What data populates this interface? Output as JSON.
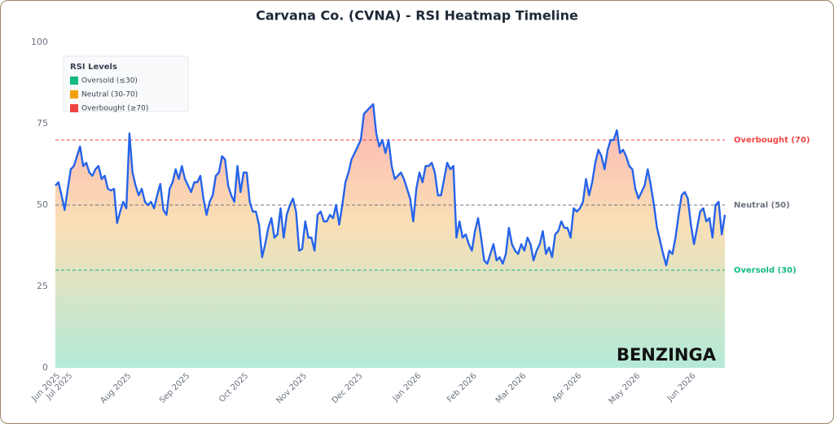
{
  "chart_data": {
    "type": "line",
    "title": "Carvana Co. (CVNA) - RSI Heatmap Timeline",
    "watermark": "BENZINGA",
    "color": "#2563eb",
    "values": [
      56,
      57,
      53,
      48.5,
      55,
      61,
      62,
      65,
      68,
      62,
      63,
      60,
      59,
      61,
      62,
      58,
      59,
      55,
      54.5,
      55,
      44.5,
      48,
      51,
      49,
      72,
      60,
      56,
      53,
      55,
      51,
      50,
      51,
      49,
      53,
      56.5,
      48.5,
      47,
      55,
      57,
      61,
      58,
      62,
      58,
      56,
      54,
      57,
      57,
      59,
      52,
      47,
      51,
      53,
      59,
      60,
      65,
      64,
      56,
      53,
      51,
      62,
      54,
      60,
      60,
      51,
      48,
      48,
      44,
      34,
      38,
      43,
      46,
      40,
      41,
      49,
      40,
      47,
      50,
      52,
      48,
      36,
      36.5,
      45,
      40,
      40,
      36,
      47,
      48,
      45,
      45,
      47,
      46,
      50,
      44,
      50,
      57,
      60,
      64,
      66,
      68,
      70,
      78,
      79,
      80,
      81,
      72,
      68,
      70,
      66,
      70,
      62,
      58,
      59,
      60,
      58,
      55,
      52,
      45,
      55,
      60,
      57,
      62,
      62,
      63,
      60,
      53,
      53,
      58,
      63,
      61,
      62,
      40,
      45,
      40,
      41,
      38,
      36,
      42,
      46,
      40,
      33,
      32,
      35,
      38,
      33,
      34,
      32,
      35,
      43,
      38,
      36,
      35,
      38,
      36,
      40,
      38,
      33,
      36,
      38,
      42,
      35,
      37,
      34,
      41,
      42,
      45,
      43,
      43,
      40,
      49,
      48,
      49,
      51,
      58,
      53,
      57,
      63,
      67,
      65,
      61,
      67,
      70,
      70,
      73,
      66,
      67,
      65,
      62,
      61,
      55,
      52,
      54,
      56,
      61,
      56,
      50,
      43,
      39,
      35,
      31.5,
      36,
      35,
      40,
      47,
      53,
      54,
      52,
      44,
      38,
      43,
      48,
      49,
      45,
      46,
      40,
      50,
      51,
      41,
      47
    ],
    "xlim": [
      0,
      217
    ],
    "xticks": [
      {
        "value": 0,
        "label": "Jun 2025"
      },
      {
        "value": 4,
        "label": "Jul 2025"
      },
      {
        "value": 23,
        "label": "Aug 2025"
      },
      {
        "value": 42,
        "label": "Sep 2025"
      },
      {
        "value": 61,
        "label": "Oct 2025"
      },
      {
        "value": 80,
        "label": "Nov 2025"
      },
      {
        "value": 98,
        "label": "Dec 2025"
      },
      {
        "value": 117,
        "label": "Jan 2026"
      },
      {
        "value": 135,
        "label": "Feb 2026"
      },
      {
        "value": 151,
        "label": "Mar 2026"
      },
      {
        "value": 169,
        "label": "Apr 2026"
      },
      {
        "value": 188,
        "label": "May 2026"
      },
      {
        "value": 206,
        "label": "Jun 2026"
      }
    ],
    "ylim": [
      0,
      100
    ],
    "yticks": [
      0,
      25,
      50,
      75,
      100
    ],
    "reference_lines": [
      {
        "value": 70,
        "label": "Overbought (70)",
        "color": "#ef4444"
      },
      {
        "value": 50,
        "label": "Neutral (50)",
        "color": "#6b7280"
      },
      {
        "value": 30,
        "label": "Oversold (30)",
        "color": "#10b981"
      }
    ],
    "legend": {
      "title": "RSI Levels",
      "position": "upper left",
      "items": [
        {
          "label": "Oversold (≤30)",
          "color": "#10b981"
        },
        {
          "label": "Neutral (30-70)",
          "color": "#f59e0b"
        },
        {
          "label": "Overbought (≥70)",
          "color": "#ef4444"
        }
      ]
    }
  }
}
